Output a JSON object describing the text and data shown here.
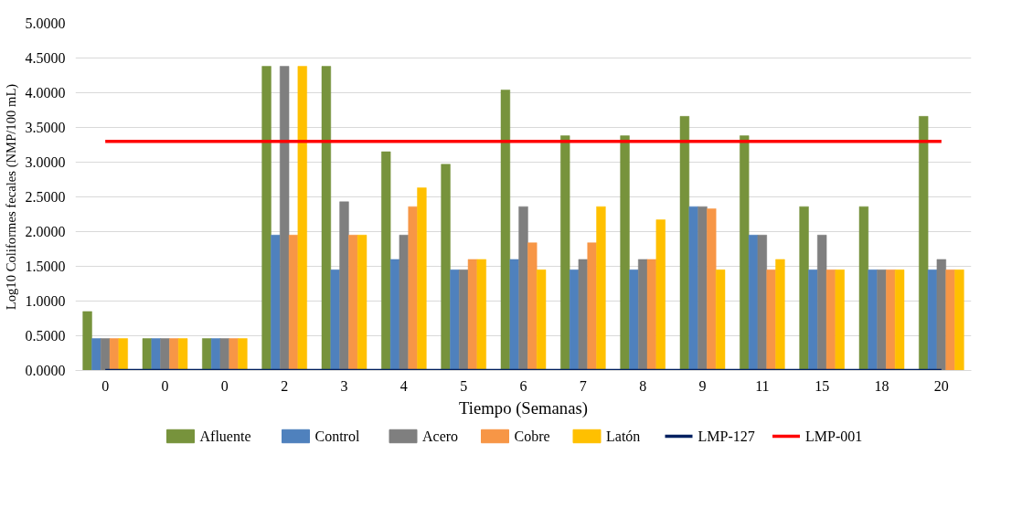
{
  "chart_data": {
    "type": "bar",
    "xlabel": "Tiempo (Semanas)",
    "ylabel": "Log10 Coliformes fecales (NMP/100 mL)",
    "categories": [
      "0",
      "0",
      "0",
      "2",
      "3",
      "4",
      "5",
      "6",
      "7",
      "8",
      "9",
      "11",
      "15",
      "18",
      "20"
    ],
    "series": [
      {
        "name": "Afluente",
        "color": "#77933c",
        "values": [
          0.85,
          0.46,
          0.46,
          4.38,
          4.38,
          3.15,
          2.97,
          4.04,
          3.38,
          3.38,
          3.66,
          3.38,
          2.36,
          2.36,
          3.66
        ]
      },
      {
        "name": "Control",
        "color": "#4f81bd",
        "values": [
          0.46,
          0.46,
          0.46,
          1.95,
          1.45,
          1.6,
          1.45,
          1.6,
          1.45,
          1.45,
          2.36,
          1.95,
          1.45,
          1.45,
          1.45
        ]
      },
      {
        "name": "Acero",
        "color": "#7f7f7f",
        "values": [
          0.46,
          0.46,
          0.46,
          4.38,
          2.43,
          1.95,
          1.45,
          2.36,
          1.6,
          1.6,
          2.36,
          1.95,
          1.95,
          1.45,
          1.6
        ]
      },
      {
        "name": "Cobre",
        "color": "#f79646",
        "values": [
          0.46,
          0.46,
          0.46,
          1.95,
          1.95,
          2.36,
          1.6,
          1.84,
          1.84,
          1.6,
          2.33,
          1.45,
          1.45,
          1.45,
          1.45
        ]
      },
      {
        "name": "Latón",
        "color": "#ffc000",
        "values": [
          0.46,
          0.46,
          0.46,
          4.38,
          1.95,
          2.63,
          1.6,
          1.45,
          2.36,
          2.17,
          1.45,
          1.6,
          1.45,
          1.45,
          1.45
        ]
      },
      {
        "name": "LMP-127",
        "type": "line",
        "color": "#002060",
        "values": [
          0,
          0,
          0,
          0,
          0,
          0,
          0,
          0,
          0,
          0,
          0,
          0,
          0,
          0,
          0
        ]
      },
      {
        "name": "LMP-001",
        "type": "line",
        "color": "#ff0000",
        "values": [
          3.3,
          3.3,
          3.3,
          3.3,
          3.3,
          3.3,
          3.3,
          3.3,
          3.3,
          3.3,
          3.3,
          3.3,
          3.3,
          3.3,
          3.3
        ]
      }
    ],
    "ylim": [
      0,
      5
    ],
    "yticks": [
      {
        "value": 0,
        "label": "0.0000"
      },
      {
        "value": 0.5,
        "label": "0.5000"
      },
      {
        "value": 1,
        "label": "1.0000"
      },
      {
        "value": 1.5,
        "label": "1.5000"
      },
      {
        "value": 2,
        "label": "2.0000"
      },
      {
        "value": 2.5,
        "label": "2.5000"
      },
      {
        "value": 3,
        "label": "3.0000"
      },
      {
        "value": 3.5,
        "label": "3.5000"
      },
      {
        "value": 4,
        "label": "4.0000"
      },
      {
        "value": 4.5,
        "label": "4.5000"
      },
      {
        "value": 5,
        "label": "5.0000"
      }
    ],
    "grid": "y",
    "legend": "bottom"
  }
}
